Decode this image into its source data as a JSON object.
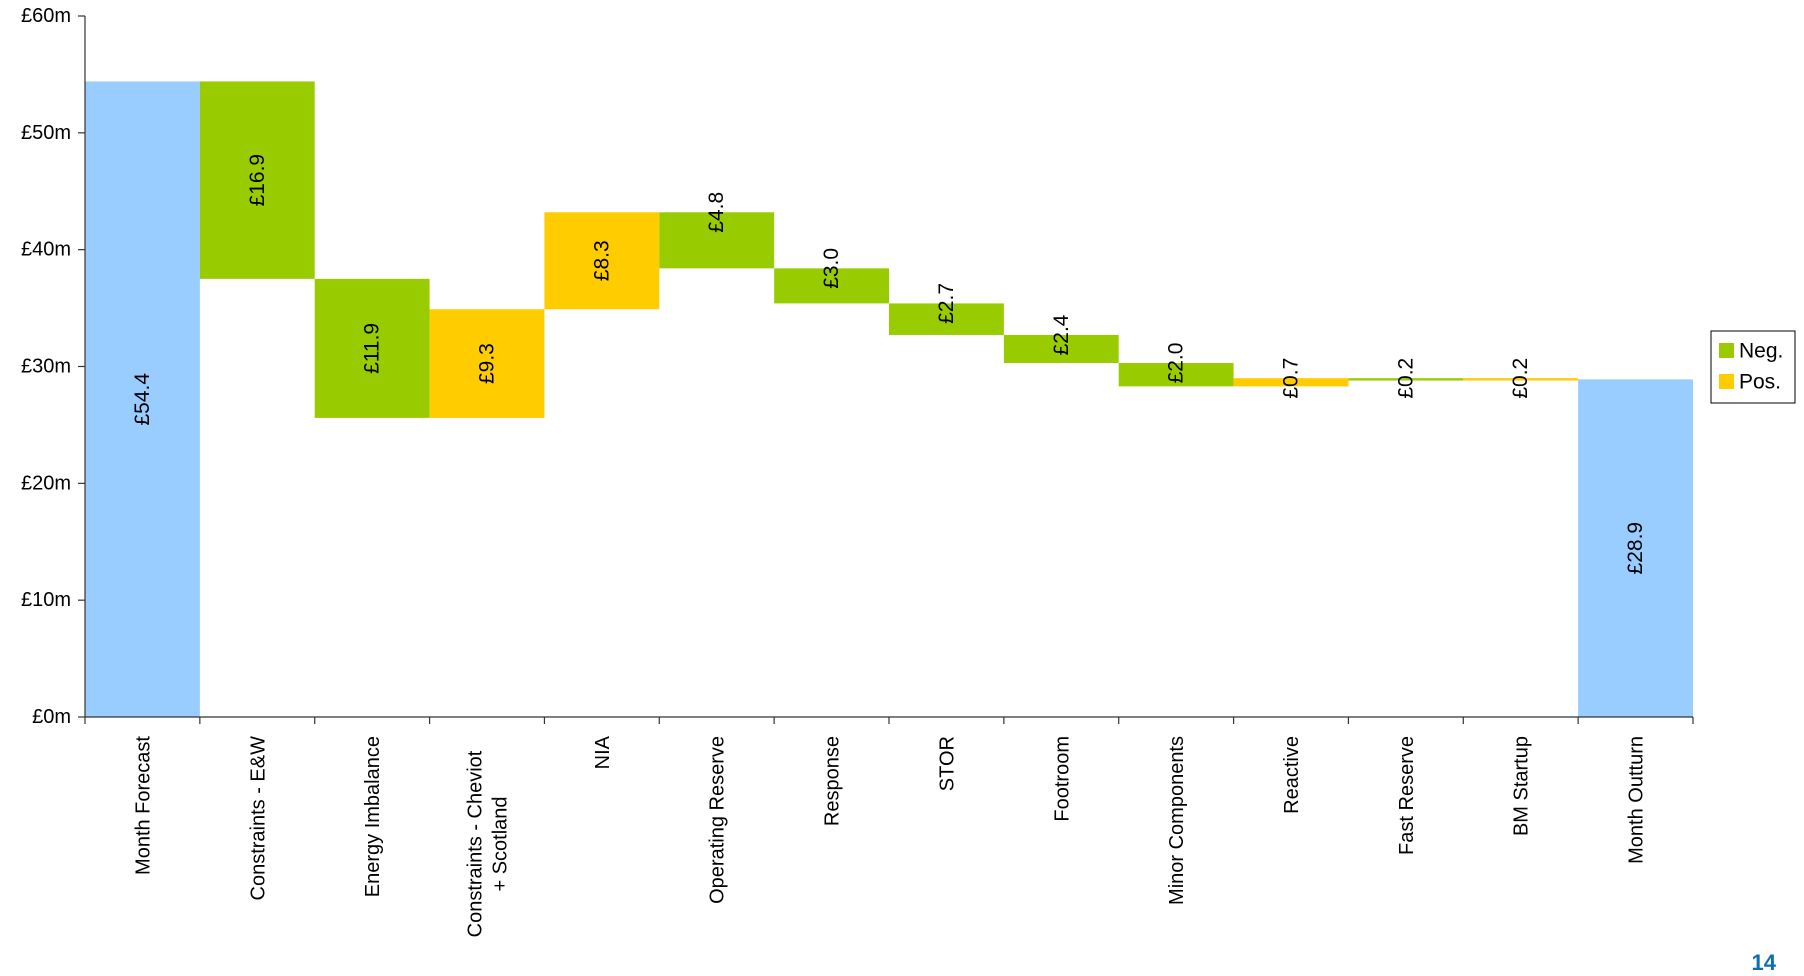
{
  "chart_data": {
    "type": "bar",
    "subtype": "waterfall",
    "categories": [
      "Month Forecast",
      "Constraints - E&W",
      "Energy Imbalance",
      "Constraints - Cheviot + Scotland",
      "NIA",
      "Operating Reserve",
      "Response",
      "STOR",
      "Footroom",
      "Minor Components",
      "Reactive",
      "Fast Reserve",
      "BM Startup",
      "Month Outturn"
    ],
    "category_label_lines": [
      [
        "Month Forecast"
      ],
      [
        "Constraints - E&W"
      ],
      [
        "Energy Imbalance"
      ],
      [
        "Constraints - Cheviot",
        "+ Scotland"
      ],
      [
        "NIA"
      ],
      [
        "Operating Reserve"
      ],
      [
        "Response"
      ],
      [
        "STOR"
      ],
      [
        "Footroom"
      ],
      [
        "Minor Components"
      ],
      [
        "Reactive"
      ],
      [
        "Fast Reserve"
      ],
      [
        "BM Startup"
      ],
      [
        "Month Outturn"
      ]
    ],
    "bars": [
      {
        "kind": "total",
        "bottom": 0,
        "top": 54.4,
        "label": "£54.4"
      },
      {
        "kind": "neg",
        "bottom": 37.5,
        "top": 54.4,
        "label": "£16.9"
      },
      {
        "kind": "neg",
        "bottom": 25.6,
        "top": 37.5,
        "label": "£11.9"
      },
      {
        "kind": "pos",
        "bottom": 25.6,
        "top": 34.9,
        "label": "£9.3"
      },
      {
        "kind": "pos",
        "bottom": 34.9,
        "top": 43.2,
        "label": "£8.3"
      },
      {
        "kind": "neg",
        "bottom": 38.4,
        "top": 43.2,
        "label": "£4.8"
      },
      {
        "kind": "neg",
        "bottom": 35.4,
        "top": 38.4,
        "label": "£3.0"
      },
      {
        "kind": "neg",
        "bottom": 32.7,
        "top": 35.4,
        "label": "£2.7"
      },
      {
        "kind": "neg",
        "bottom": 30.3,
        "top": 32.7,
        "label": "£2.4"
      },
      {
        "kind": "neg",
        "bottom": 28.3,
        "top": 30.3,
        "label": "£2.0"
      },
      {
        "kind": "pos",
        "bottom": 28.3,
        "top": 29.0,
        "label": "£0.7"
      },
      {
        "kind": "neg",
        "bottom": 28.8,
        "top": 29.0,
        "label": "£0.2"
      },
      {
        "kind": "pos",
        "bottom": 28.8,
        "top": 29.0,
        "label": "£0.2"
      },
      {
        "kind": "total",
        "bottom": 0,
        "top": 28.9,
        "label": "£28.9"
      }
    ],
    "y_ticks": [
      {
        "value": 0,
        "label": "£0m"
      },
      {
        "value": 10,
        "label": "£10m"
      },
      {
        "value": 20,
        "label": "£20m"
      },
      {
        "value": 30,
        "label": "£30m"
      },
      {
        "value": 40,
        "label": "£40m"
      },
      {
        "value": 50,
        "label": "£50m"
      },
      {
        "value": 60,
        "label": "£60m"
      }
    ],
    "ylim": [
      0,
      60
    ],
    "title": "",
    "xlabel": "",
    "ylabel": "",
    "grid": false,
    "legend": {
      "position": "right",
      "items": [
        {
          "key": "neg",
          "label": "Neg."
        },
        {
          "key": "pos",
          "label": "Pos."
        }
      ]
    },
    "colors": {
      "total": "#99ccff",
      "neg": "#99cc00",
      "pos": "#ffcc00",
      "axis": "#333333"
    }
  },
  "page_number": "14"
}
